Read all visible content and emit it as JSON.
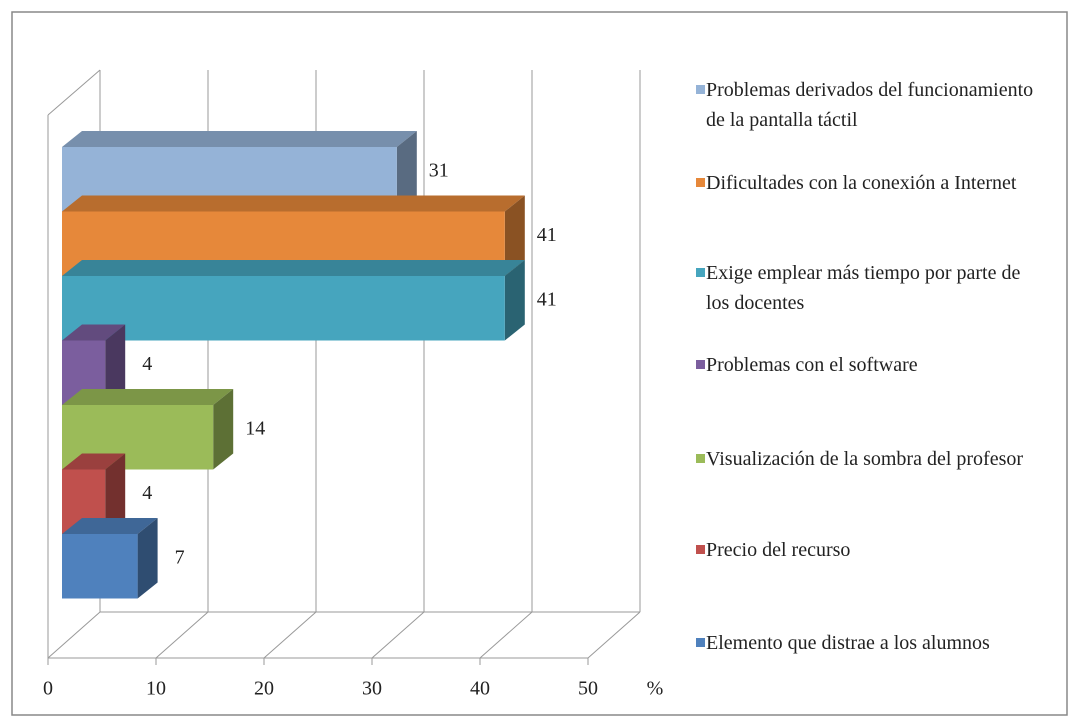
{
  "chart_data": {
    "type": "bar3d_horizontal",
    "categories": [
      "Problemas derivados del funcionamiento de la pantalla táctil",
      "Dificultades con la conexión a Internet",
      "Exige emplear más tiempo por parte de los docentes",
      "Problemas con el software",
      "Visualización de la sombra del profesor",
      "Precio del recurso",
      "Elemento que distrae a los alumnos"
    ],
    "values": [
      31,
      41,
      41,
      4,
      14,
      4,
      7
    ],
    "colors": [
      "#95b3d7",
      "#e6883a",
      "#46a5be",
      "#7b5e9e",
      "#9bbb59",
      "#c0504d",
      "#4f81bd"
    ],
    "xlim": [
      0,
      50
    ],
    "xticks": [
      0,
      10,
      20,
      30,
      40,
      50
    ],
    "xlabel": "%",
    "grid": true
  }
}
